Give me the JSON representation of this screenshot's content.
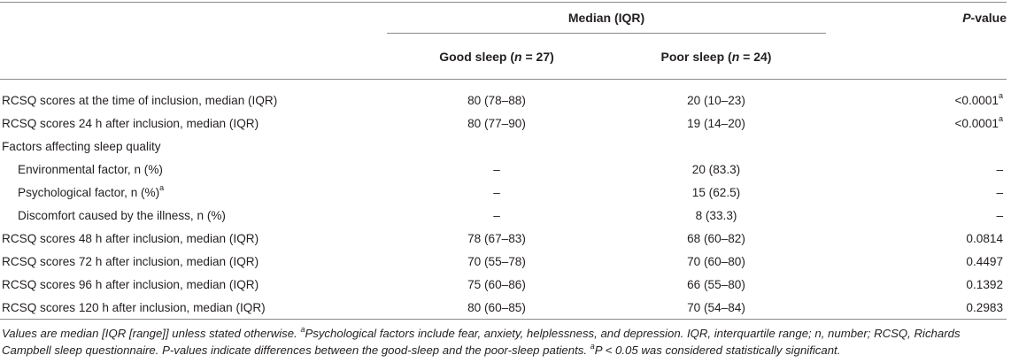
{
  "header": {
    "median_group": "Median (IQR)",
    "pvalue_italic": "P",
    "pvalue_rest": "-value",
    "good_prefix": "Good sleep (",
    "good_n_italic": "n",
    "good_suffix": " = 27)",
    "poor_prefix": "Poor sleep (",
    "poor_n_italic": "n",
    "poor_suffix": " = 24)"
  },
  "rows": [
    {
      "label": "RCSQ scores at the time of inclusion, median (IQR)",
      "label_sup": "",
      "good": "80 (78–88)",
      "poor": "20 (10–23)",
      "p": "<0.0001",
      "p_sup": "a"
    },
    {
      "label": "RCSQ scores 24 h after inclusion, median (IQR)",
      "label_sup": "",
      "good": "80 (77–90)",
      "poor": "19 (14–20)",
      "p": "<0.0001",
      "p_sup": "a"
    },
    {
      "label": "Factors affecting sleep quality",
      "label_sup": "",
      "good": "",
      "poor": "",
      "p": "",
      "p_sup": ""
    },
    {
      "label": "Environmental factor, n (%)",
      "label_sup": "",
      "good": "–",
      "poor": "20 (83.3)",
      "p": "–",
      "p_sup": ""
    },
    {
      "label": "Psychological factor, n (%)",
      "label_sup": "a",
      "good": "–",
      "poor": "15 (62.5)",
      "p": "–",
      "p_sup": ""
    },
    {
      "label": "Discomfort caused by the illness, n (%)",
      "label_sup": "",
      "good": "–",
      "poor": "8 (33.3)",
      "p": "–",
      "p_sup": ""
    },
    {
      "label": "RCSQ scores 48 h after inclusion, median (IQR)",
      "label_sup": "",
      "good": "78 (67–83)",
      "poor": "68 (60–82)",
      "p": "0.0814",
      "p_sup": ""
    },
    {
      "label": "RCSQ scores 72 h after inclusion, median (IQR)",
      "label_sup": "",
      "good": "70 (55–78)",
      "poor": "70 (60–80)",
      "p": "0.4497",
      "p_sup": ""
    },
    {
      "label": "RCSQ scores 96 h after inclusion, median (IQR)",
      "label_sup": "",
      "good": "75 (60–86)",
      "poor": "66 (55–80)",
      "p": "0.1392",
      "p_sup": ""
    },
    {
      "label": "RCSQ scores 120 h after inclusion, median (IQR)",
      "label_sup": "",
      "good": "80 (60–85)",
      "poor": "70 (54–84)",
      "p": "0.2983",
      "p_sup": ""
    }
  ],
  "footnote": {
    "part1": "Values are median [IQR [range]] unless stated otherwise. ",
    "sup1": "a",
    "part2": "Psychological factors include fear, anxiety, helplessness, and depression. IQR, interquartile range; n, number; RCSQ, Richards Campbell sleep questionnaire. P-values indicate differences between the good-sleep and the poor-sleep patients. ",
    "sup2": "a",
    "part3": "P < 0.05 was considered statistically significant."
  }
}
